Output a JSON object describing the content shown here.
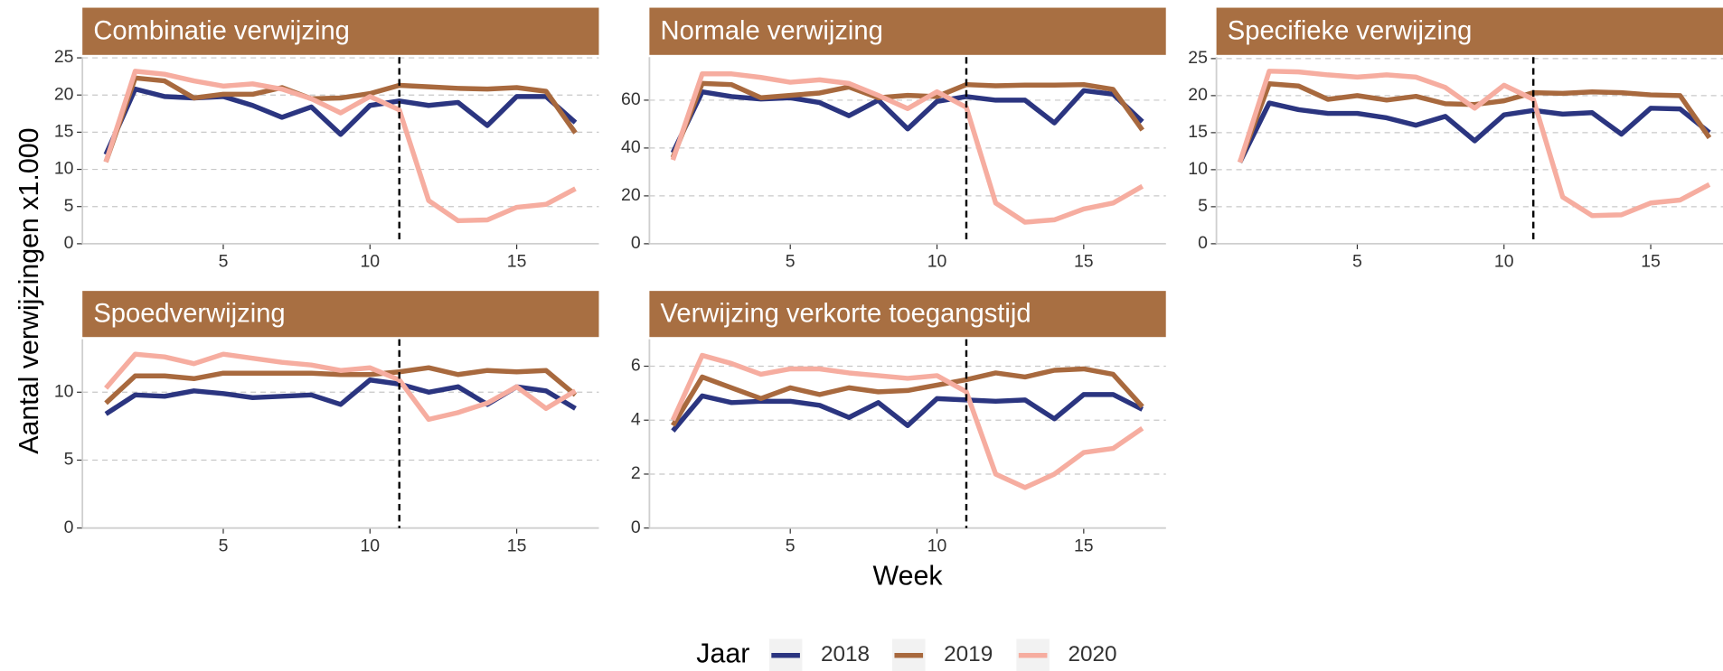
{
  "chart_data": [
    {
      "type": "line",
      "title": "Combinatie verwijzing",
      "x": [
        1,
        2,
        3,
        4,
        5,
        6,
        7,
        8,
        9,
        10,
        11,
        12,
        13,
        14,
        15,
        16,
        17
      ],
      "xlim": [
        0.2,
        17.8
      ],
      "xticks": [
        5,
        10,
        15
      ],
      "ylim": [
        0,
        25.1
      ],
      "yticks": [
        0,
        5,
        10,
        15,
        20,
        25
      ],
      "vline": 11,
      "grid": true,
      "series": [
        {
          "name": "2018",
          "color": "#2b3580",
          "values": [
            12,
            20.8,
            19.8,
            19.6,
            19.8,
            18.6,
            17,
            18.4,
            14.7,
            18.6,
            19.2,
            18.6,
            19,
            15.9,
            19.8,
            19.8,
            16.3
          ]
        },
        {
          "name": "2019",
          "color": "#a8693e",
          "values": [
            11,
            22.3,
            21.9,
            19.6,
            20.1,
            20.1,
            21,
            19.5,
            19.6,
            20.2,
            21.3,
            21.1,
            20.9,
            20.8,
            21,
            20.5,
            14.9
          ]
        },
        {
          "name": "2020",
          "color": "#f6ada0",
          "values": [
            11,
            23.2,
            22.8,
            21.9,
            21.2,
            21.5,
            20.8,
            19.5,
            17.6,
            19.8,
            18,
            5.8,
            3.1,
            3.2,
            4.9,
            5.3,
            7.4
          ]
        }
      ]
    },
    {
      "type": "line",
      "title": "Normale verwijzing",
      "x": [
        1,
        2,
        3,
        4,
        5,
        6,
        7,
        8,
        9,
        10,
        11,
        12,
        13,
        14,
        15,
        16,
        17
      ],
      "xlim": [
        0.2,
        17.8
      ],
      "xticks": [
        5,
        10,
        15
      ],
      "ylim": [
        0,
        78
      ],
      "yticks": [
        0,
        20,
        40,
        60
      ],
      "vline": 11,
      "grid": true,
      "series": [
        {
          "name": "2018",
          "color": "#2b3580",
          "values": [
            38,
            63.5,
            61.5,
            60.5,
            61,
            59,
            53.5,
            60,
            48,
            59.5,
            61.5,
            60,
            60,
            50.5,
            64,
            62.5,
            51
          ]
        },
        {
          "name": "2019",
          "color": "#a8693e",
          "values": [
            36,
            67,
            66.5,
            61,
            62,
            63,
            65.5,
            61,
            62,
            61.5,
            66.5,
            66,
            66.3,
            66.3,
            66.5,
            64.5,
            47.5
          ]
        },
        {
          "name": "2020",
          "color": "#f6ada0",
          "values": [
            35,
            71,
            71,
            69.5,
            67.5,
            68.5,
            67,
            62,
            56.5,
            63.5,
            57,
            17,
            9,
            10,
            14.5,
            17,
            24
          ]
        }
      ]
    },
    {
      "type": "line",
      "title": "Specifieke verwijzing",
      "x": [
        1,
        2,
        3,
        4,
        5,
        6,
        7,
        8,
        9,
        10,
        11,
        12,
        13,
        14,
        15,
        16,
        17
      ],
      "xlim": [
        0.2,
        17.8
      ],
      "xticks": [
        5,
        10,
        15
      ],
      "ylim": [
        0,
        25.2
      ],
      "yticks": [
        0,
        5,
        10,
        15,
        20,
        25
      ],
      "vline": 11,
      "grid": true,
      "series": [
        {
          "name": "2018",
          "color": "#2b3580",
          "values": [
            11,
            19,
            18.1,
            17.6,
            17.6,
            17,
            16,
            17.2,
            13.9,
            17.4,
            18,
            17.5,
            17.7,
            14.8,
            18.3,
            18.2,
            15
          ]
        },
        {
          "name": "2019",
          "color": "#a8693e",
          "values": [
            11,
            21.6,
            21.3,
            19.5,
            20,
            19.4,
            19.9,
            18.9,
            18.8,
            19.3,
            20.4,
            20.3,
            20.5,
            20.4,
            20.1,
            20,
            14.3
          ]
        },
        {
          "name": "2020",
          "color": "#f6ada0",
          "values": [
            11,
            23.3,
            23.2,
            22.8,
            22.5,
            22.8,
            22.5,
            21.1,
            18.3,
            21.4,
            19.5,
            6.3,
            3.8,
            3.9,
            5.5,
            5.9,
            8
          ]
        }
      ]
    },
    {
      "type": "line",
      "title": "Spoedverwijzing",
      "x": [
        1,
        2,
        3,
        4,
        5,
        6,
        7,
        8,
        9,
        10,
        11,
        12,
        13,
        14,
        15,
        16,
        17
      ],
      "xlim": [
        0.2,
        17.8
      ],
      "xticks": [
        5,
        10,
        15
      ],
      "ylim": [
        0,
        13.9
      ],
      "yticks": [
        0,
        5,
        10
      ],
      "vline": 11,
      "grid": true,
      "series": [
        {
          "name": "2018",
          "color": "#2b3580",
          "values": [
            8.4,
            9.8,
            9.7,
            10.1,
            9.9,
            9.6,
            9.7,
            9.8,
            9.1,
            10.9,
            10.6,
            10,
            10.4,
            9.1,
            10.4,
            10.1,
            8.8
          ]
        },
        {
          "name": "2019",
          "color": "#a8693e",
          "values": [
            9.2,
            11.2,
            11.2,
            11,
            11.4,
            11.4,
            11.4,
            11.4,
            11.3,
            11.3,
            11.5,
            11.8,
            11.3,
            11.6,
            11.5,
            11.6,
            9.8
          ]
        },
        {
          "name": "2020",
          "color": "#f6ada0",
          "values": [
            10.3,
            12.8,
            12.6,
            12.1,
            12.8,
            12.5,
            12.2,
            12,
            11.6,
            11.8,
            10.9,
            8,
            8.5,
            9.2,
            10.4,
            8.8,
            10.1
          ]
        }
      ]
    },
    {
      "type": "line",
      "title": "Verwijzing verkorte toegangstijd",
      "x": [
        1,
        2,
        3,
        4,
        5,
        6,
        7,
        8,
        9,
        10,
        11,
        12,
        13,
        14,
        15,
        16,
        17
      ],
      "xlim": [
        0.2,
        17.8
      ],
      "xticks": [
        5,
        10,
        15
      ],
      "ylim": [
        0,
        7
      ],
      "yticks": [
        0,
        2,
        4,
        6
      ],
      "vline": 11,
      "grid": true,
      "series": [
        {
          "name": "2018",
          "color": "#2b3580",
          "values": [
            3.6,
            4.9,
            4.65,
            4.7,
            4.7,
            4.55,
            4.1,
            4.65,
            3.8,
            4.8,
            4.75,
            4.7,
            4.75,
            4.05,
            4.95,
            4.95,
            4.4
          ]
        },
        {
          "name": "2019",
          "color": "#a8693e",
          "values": [
            3.8,
            5.6,
            5.2,
            4.8,
            5.2,
            4.95,
            5.2,
            5.05,
            5.1,
            5.3,
            5.5,
            5.75,
            5.6,
            5.85,
            5.9,
            5.7,
            4.5
          ]
        },
        {
          "name": "2020",
          "color": "#f6ada0",
          "values": [
            4,
            6.4,
            6.1,
            5.7,
            5.9,
            5.9,
            5.75,
            5.65,
            5.55,
            5.65,
            5.05,
            2,
            1.5,
            2,
            2.8,
            2.95,
            3.7
          ]
        }
      ]
    }
  ],
  "y_label": "Aantal verwijzingen x1.000",
  "x_label": "Week",
  "legend_title": "Jaar"
}
